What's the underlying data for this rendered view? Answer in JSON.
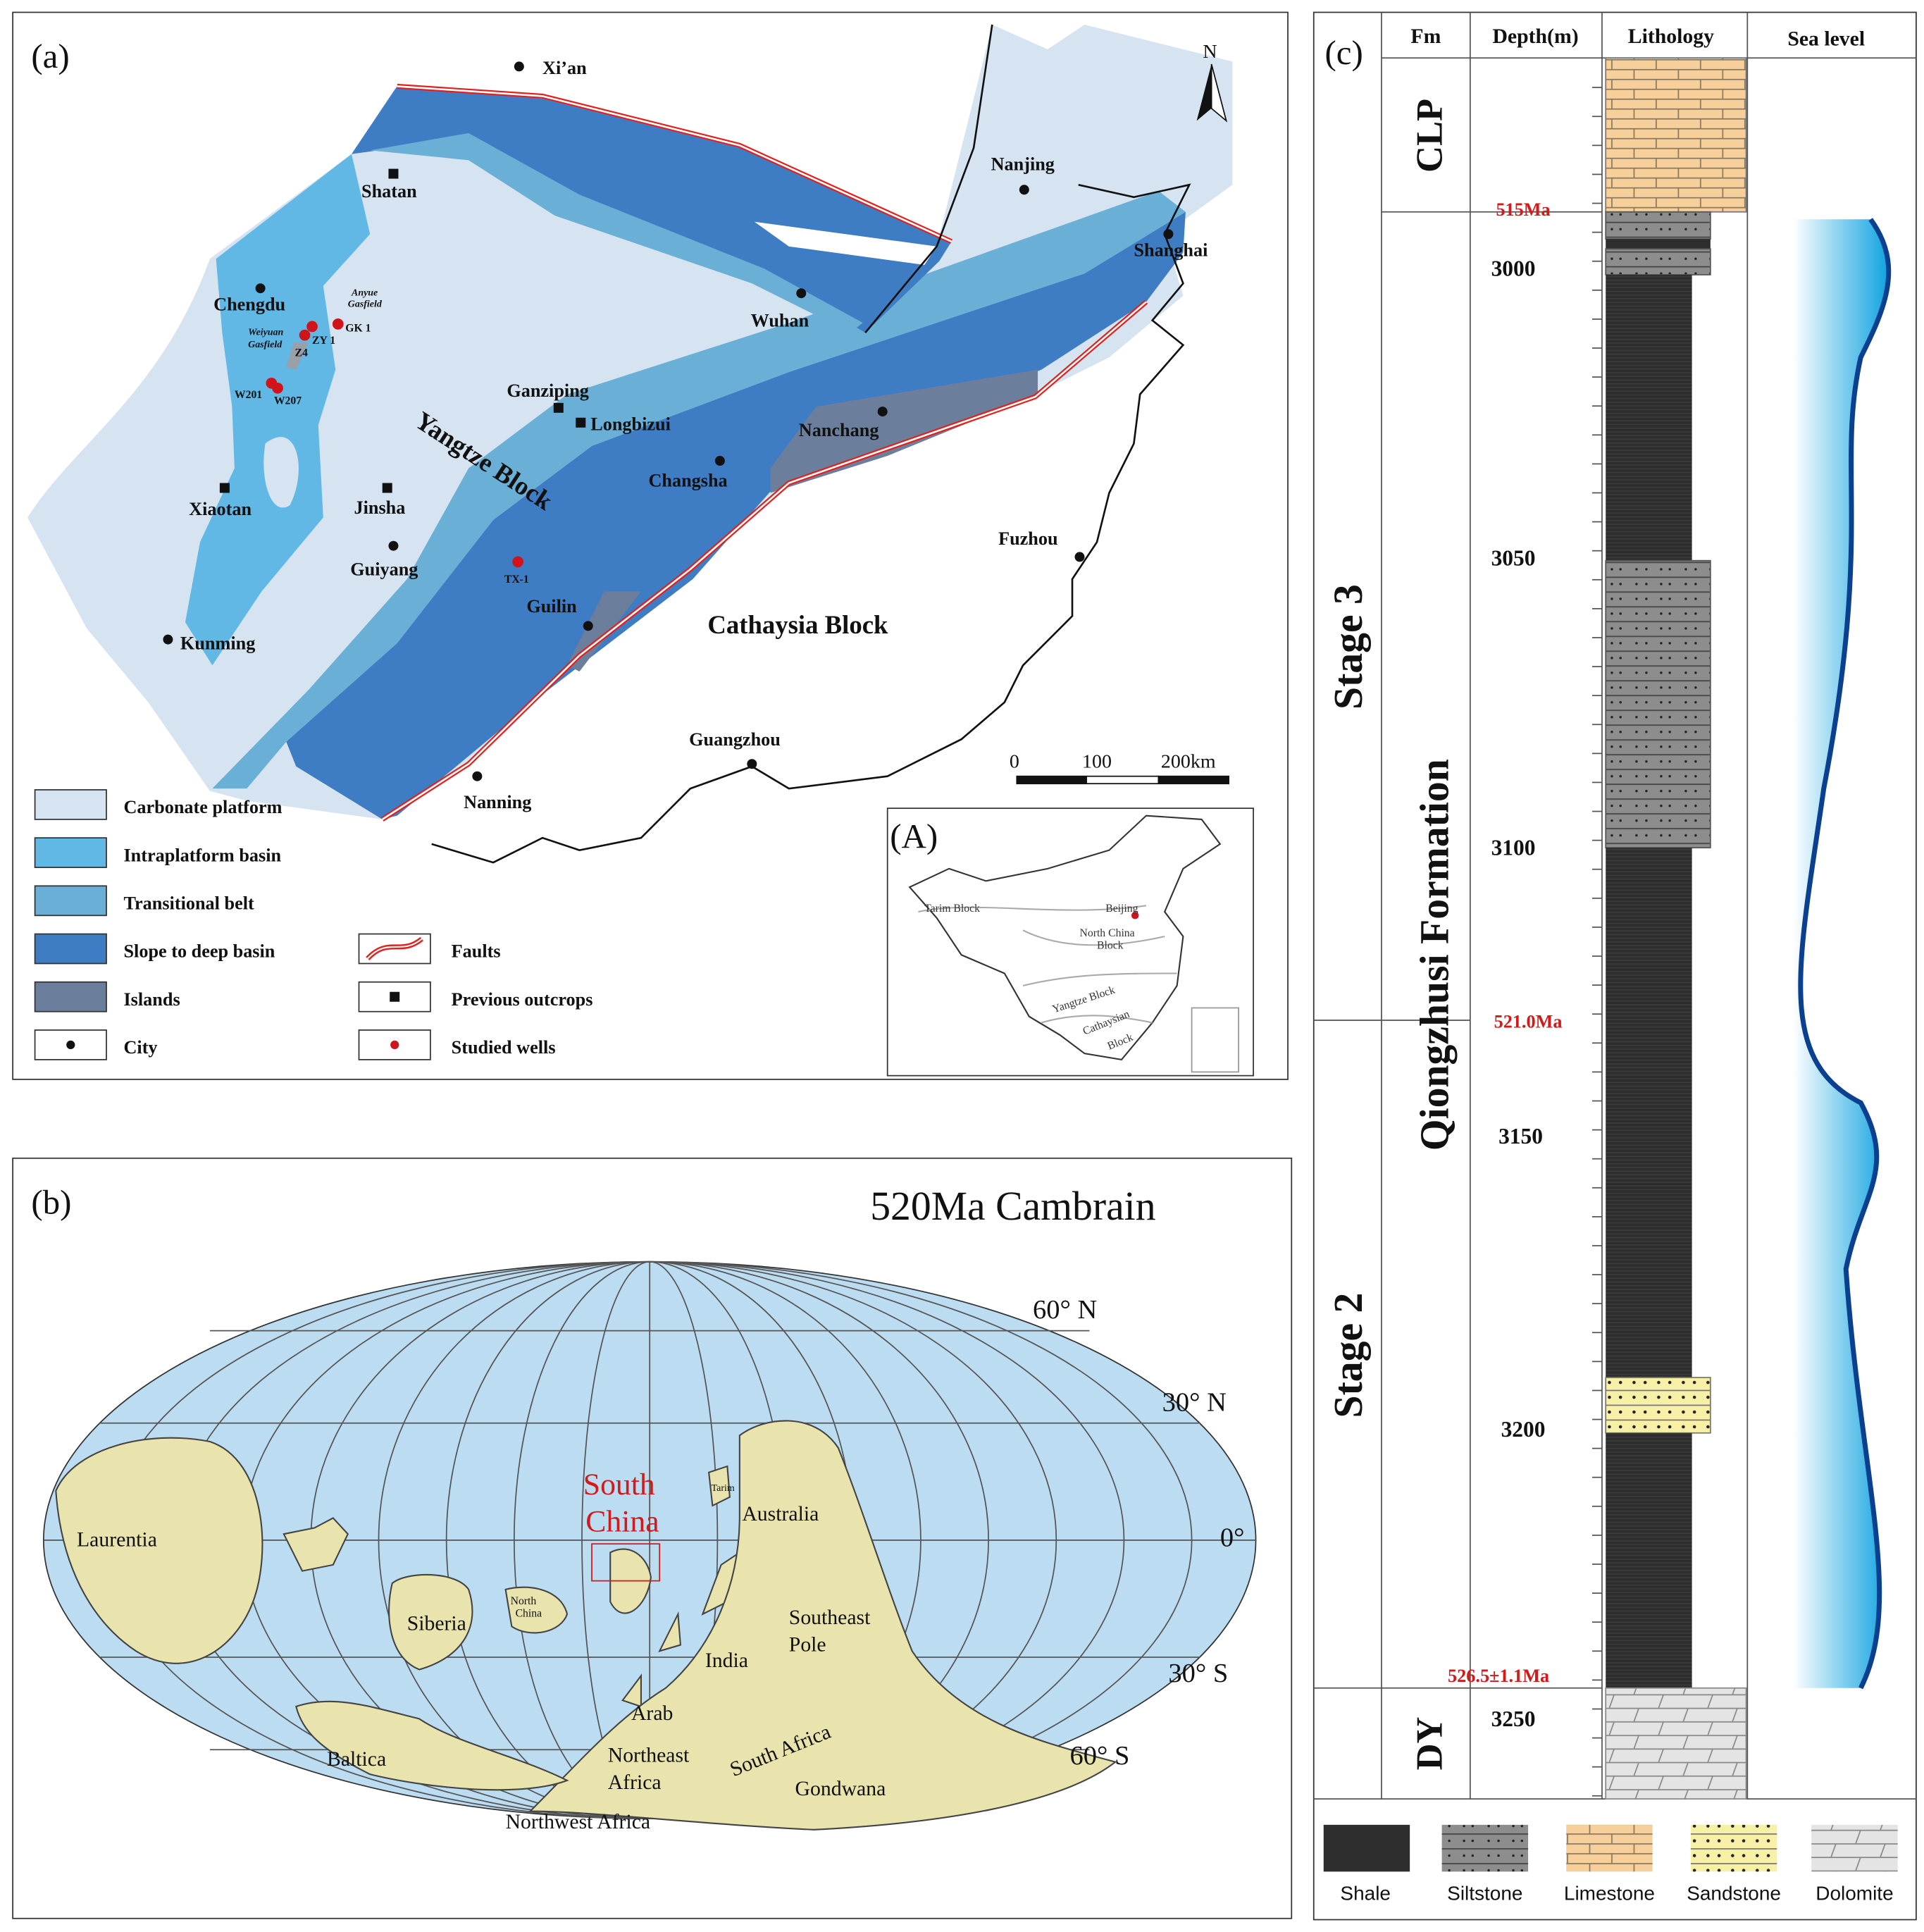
{
  "panel_a": {
    "label": "(a)",
    "north": "N",
    "cities": [
      "Xi’an",
      "Shatan",
      "Chengdu",
      "Nanjing",
      "Shanghai",
      "Wuhan",
      "Ganziping",
      "Longbizui",
      "Changsha",
      "Nanchang",
      "Jinsha",
      "Xiaotan",
      "Guiyang",
      "Fuzhou",
      "Guilin",
      "Kunming",
      "Guangzhou",
      "Nanning"
    ],
    "blocks": [
      "Yangtze Block",
      "Cathaysia Block"
    ],
    "wells": [
      "GK 1",
      "ZY 1",
      "Z4",
      "W201",
      "W207",
      "TX-1"
    ],
    "gasfields": [
      "Anyue",
      "Gasfield",
      "Weiyuan",
      "Gasfield"
    ],
    "scale": [
      "0",
      "100",
      "200km"
    ],
    "legend": [
      "Carbonate platform",
      "Intraplatform basin",
      "Transitional belt",
      "Slope to deep basin",
      "Islands",
      "City",
      "Faults",
      "Previous outcrops",
      "Studied wells"
    ],
    "inset": {
      "label": "(A)",
      "labels": [
        "Tarim Block",
        "Beijing",
        "North China",
        "Block",
        "Yangtze Block",
        "Cathaysian",
        "Block"
      ]
    }
  },
  "panel_b": {
    "label": "(b)",
    "title": "520Ma Cambrain",
    "latitudes": [
      "60° N",
      "30° N",
      "0°",
      "30° S",
      "60° S"
    ],
    "highlight": [
      "South",
      "China"
    ],
    "continents": [
      "Laurentia",
      "Siberia",
      "North",
      "China",
      "Tarim",
      "Australia",
      "Southeast",
      "Pole",
      "India",
      "Arab",
      "Northeast",
      "Africa",
      "South Africa",
      "Gondwana",
      "Baltica",
      "Northwest Africa"
    ]
  },
  "panel_c": {
    "label": "(c)",
    "headers": [
      "Fm",
      "Depth(m)",
      "Lithology",
      "Sea level"
    ],
    "units": [
      "CLP",
      "Qiongzhusi Formation",
      "DY"
    ],
    "stages": [
      "Stage 3",
      "Stage 2"
    ],
    "ages": [
      "515Ma",
      "521.0Ma",
      "526.5±1.1Ma"
    ],
    "depths": [
      3000,
      3050,
      3100,
      3150,
      3200,
      3250
    ],
    "legend": [
      "Shale",
      "Siltstone",
      "Limestone",
      "Sandstone",
      "Dolomite"
    ]
  }
}
